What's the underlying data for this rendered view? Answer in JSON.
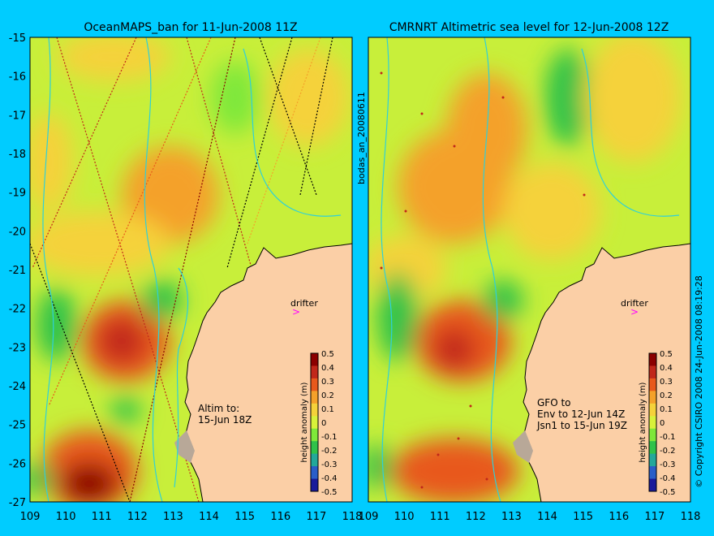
{
  "left_panel": {
    "title": "OceanMAPS_ban for 11-Jun-2008 11Z",
    "annotation_lines": [
      "Altim to:",
      "15-Jun 18Z"
    ],
    "drifter_label": "drifter"
  },
  "right_panel": {
    "title": "CMRNRT Altimetric sea level  for 12-Jun-2008 12Z",
    "annotation_lines": [
      "GFO to",
      "Env to 12-Jun 14Z",
      "Jsn1 to 15-Jun 19Z"
    ],
    "drifter_label": "drifter"
  },
  "side_label": "bodas_an_20080611",
  "right_margin_text": "© Copyright CSIRO 2008   24-Jun-2008 08:19:28",
  "axes": {
    "lat_ticks": [
      "-15",
      "-16",
      "-17",
      "-18",
      "-19",
      "-20",
      "-21",
      "-22",
      "-23",
      "-24",
      "-25",
      "-26",
      "-27"
    ],
    "lon_ticks": [
      "109",
      "110",
      "111",
      "112",
      "113",
      "114",
      "115",
      "116",
      "117",
      "118"
    ]
  },
  "colorbar": {
    "label": "height anomaly (m)",
    "ticks": [
      "0.5",
      "0.4",
      "0.3",
      "0.2",
      "0.1",
      "0",
      "-0.1",
      "-0.2",
      "-0.3",
      "-0.4",
      "-0.5"
    ],
    "colors": [
      "#8b0000",
      "#c1271a",
      "#e8591b",
      "#f4a12a",
      "#f5d23a",
      "#d8f23a",
      "#7fe83a",
      "#2fc24a",
      "#23a89a",
      "#2a5ec8",
      "#1a1a9a"
    ]
  },
  "colors": {
    "land": "#fbcfa6",
    "ocean_base": "#c8ef3a",
    "background": "#00ccff",
    "drifter": "#ff00ff",
    "contour": "#2fd0d8"
  }
}
